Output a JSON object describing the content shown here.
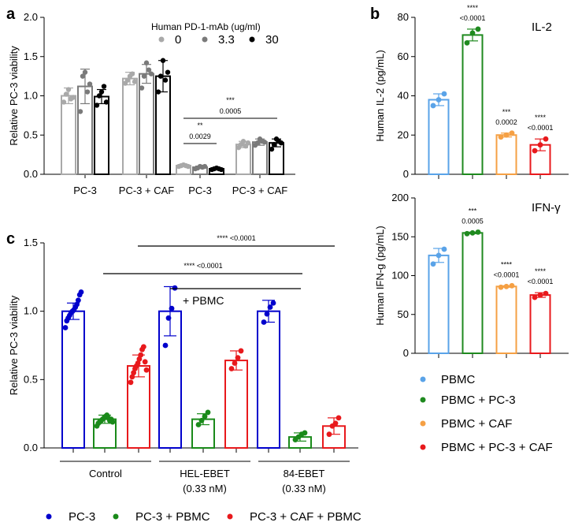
{
  "panel_labels": [
    "a",
    "b",
    "c"
  ],
  "chart_data": [
    {
      "panel": "a",
      "type": "bar",
      "ylabel": "Relative PC-3 viability",
      "ylim": [
        0,
        2.0
      ],
      "yticks": [
        "0.0",
        "0.5",
        "1.0",
        "1.5",
        "2.0"
      ],
      "groups": [
        "PC-3",
        "PC-3 + CAF",
        "PC-3",
        "PC-3 + CAF"
      ],
      "legend_title": "Human PD-1-mAb (ug/ml)",
      "legend_items": [
        "0",
        "3.3",
        "30"
      ],
      "colors": [
        "#a9a9a9",
        "#7a7a7a",
        "#000000"
      ],
      "series": [
        {
          "name": "0",
          "means": [
            1.0,
            1.22,
            0.11,
            0.38
          ],
          "sd": [
            0.1,
            0.08,
            0.01,
            0.04
          ],
          "points": [
            [
              0.92,
              1.02,
              1.08,
              0.96,
              0.98
            ],
            [
              1.16,
              1.2,
              1.25,
              1.28,
              1.18
            ],
            [
              0.1,
              0.11,
              0.12,
              0.11,
              0.1
            ],
            [
              0.34,
              0.38,
              0.42,
              0.36,
              0.4
            ]
          ]
        },
        {
          "name": "3.3",
          "means": [
            1.12,
            1.28,
            0.09,
            0.41
          ],
          "sd": [
            0.22,
            0.12,
            0.015,
            0.04
          ],
          "points": [
            [
              0.8,
              1.25,
              1.3,
              1.05,
              1.15
            ],
            [
              1.1,
              1.25,
              1.42,
              1.33,
              1.28
            ],
            [
              0.07,
              0.08,
              0.1,
              0.09,
              0.1
            ],
            [
              0.37,
              0.4,
              0.45,
              0.42,
              0.41
            ]
          ]
        },
        {
          "name": "30",
          "means": [
            0.99,
            1.25,
            0.07,
            0.4
          ],
          "sd": [
            0.09,
            0.2,
            0.01,
            0.05
          ],
          "points": [
            [
              0.88,
              1.0,
              1.05,
              1.12,
              0.92
            ],
            [
              1.05,
              1.25,
              1.45,
              1.2,
              1.3
            ],
            [
              0.06,
              0.07,
              0.08,
              0.07,
              0.06
            ],
            [
              0.32,
              0.38,
              0.45,
              0.42,
              0.4
            ]
          ]
        }
      ],
      "annotations": [
        {
          "stars": "**",
          "p": "0.0029"
        },
        {
          "stars": "***",
          "p": "0.0005"
        }
      ]
    },
    {
      "panel": "b-top",
      "type": "bar",
      "title": "IL-2",
      "ylabel": "Human IL-2 (pg/mL)",
      "ylim": [
        0,
        80
      ],
      "yticks": [
        "0",
        "20",
        "40",
        "60",
        "80"
      ],
      "categories": [
        "PBMC",
        "PBMC + PC-3",
        "PBMC + CAF",
        "PBMC + PC-3 + CAF"
      ],
      "colors": [
        "#5aa3e8",
        "#1f8a1f",
        "#f5a044",
        "#e8191c"
      ],
      "values": [
        38,
        71,
        20,
        15
      ],
      "sd": [
        3,
        3,
        1,
        3
      ],
      "points": [
        [
          35,
          38,
          41
        ],
        [
          67,
          72,
          74
        ],
        [
          19,
          20,
          21
        ],
        [
          12,
          15,
          18
        ]
      ],
      "annotations": [
        {
          "stars": "",
          "p": ""
        },
        {
          "stars": "****",
          "p": "<0.0001"
        },
        {
          "stars": "***",
          "p": "0.0002"
        },
        {
          "stars": "****",
          "p": "<0.0001"
        }
      ]
    },
    {
      "panel": "b-bottom",
      "type": "bar",
      "title": "IFN-γ",
      "ylabel": "Human IFN-g (pg/mL)",
      "ylim": [
        0,
        200
      ],
      "yticks": [
        "0",
        "50",
        "100",
        "150",
        "200"
      ],
      "categories": [
        "PBMC",
        "PBMC + PC-3",
        "PBMC + CAF",
        "PBMC + PC-3 + CAF"
      ],
      "colors": [
        "#5aa3e8",
        "#1f8a1f",
        "#f5a044",
        "#e8191c"
      ],
      "values": [
        126,
        155,
        86,
        75
      ],
      "sd": [
        9,
        1,
        1,
        3
      ],
      "points": [
        [
          115,
          126,
          134
        ],
        [
          154,
          155,
          156
        ],
        [
          85,
          86,
          87
        ],
        [
          72,
          75,
          77
        ]
      ],
      "annotations": [
        {
          "stars": "",
          "p": ""
        },
        {
          "stars": "***",
          "p": "0.0005"
        },
        {
          "stars": "****",
          "p": "<0.0001"
        },
        {
          "stars": "****",
          "p": "<0.0001"
        }
      ]
    },
    {
      "panel": "c",
      "type": "bar",
      "ylabel": "Relative PC-3 viability",
      "ylim": [
        0,
        1.5
      ],
      "yticks": [
        "0.0",
        "0.5",
        "1.0",
        "1.5"
      ],
      "groups": [
        "Control",
        "HEL-EBET\n(0.33 nM)",
        "84-EBET\n(0.33 nM)"
      ],
      "series_names": [
        "PC-3",
        "PC-3 + PBMC",
        "PC-3 + CAF + PBMC"
      ],
      "colors": [
        "#0000cc",
        "#1a8a1a",
        "#e8191c"
      ],
      "means": [
        [
          1.0,
          0.21,
          0.6
        ],
        [
          1.0,
          0.21,
          0.64
        ],
        [
          1.0,
          0.08,
          0.16
        ]
      ],
      "sd": [
        [
          0.06,
          0.03,
          0.08
        ],
        [
          0.18,
          0.04,
          0.07
        ],
        [
          0.08,
          0.03,
          0.06
        ]
      ],
      "points": [
        [
          [
            0.88,
            0.93,
            0.95,
            0.97,
            0.99,
            1.0,
            1.01,
            1.03,
            1.05,
            1.08,
            1.12,
            1.14
          ],
          [
            0.16,
            0.18,
            0.19,
            0.2,
            0.21,
            0.22,
            0.23,
            0.24,
            0.22,
            0.2,
            0.21,
            0.19
          ],
          [
            0.48,
            0.52,
            0.55,
            0.58,
            0.6,
            0.62,
            0.65,
            0.68,
            0.72,
            0.74,
            0.63,
            0.57
          ]
        ],
        [
          [
            0.75,
            0.95,
            1.02,
            1.17
          ],
          [
            0.17,
            0.2,
            0.23,
            0.26
          ],
          [
            0.58,
            0.62,
            0.66,
            0.71
          ]
        ],
        [
          [
            0.92,
            0.98,
            1.03,
            1.06
          ],
          [
            0.06,
            0.08,
            0.1,
            0.11
          ],
          [
            0.1,
            0.16,
            0.18,
            0.22
          ]
        ]
      ],
      "annotations": [
        {
          "text": "**** <0.0001"
        },
        {
          "text": "**** <0.0001"
        },
        {
          "text": "+ PBMC"
        }
      ]
    }
  ]
}
